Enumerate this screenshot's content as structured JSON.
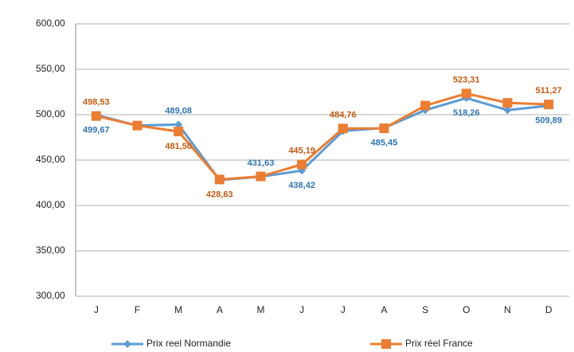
{
  "chart_data": {
    "type": "line",
    "categories": [
      "J",
      "F",
      "M",
      "A",
      "M",
      "J",
      "J",
      "A",
      "S",
      "O",
      "N",
      "D"
    ],
    "series": [
      {
        "name": "Prix reel Normandie",
        "color": "#5b9bd5",
        "marker": "diamond",
        "values": [
          499.67,
          488,
          489.08,
          428,
          431.63,
          438.42,
          482,
          485.45,
          505,
          518.26,
          505,
          509.89
        ],
        "value_labels": [
          "499,67",
          null,
          "489,08",
          null,
          "431,63",
          "438,42",
          null,
          "485,45",
          null,
          "518,26",
          null,
          "509,89"
        ]
      },
      {
        "name": "Prix réel France",
        "color": "#ed7d31",
        "marker": "square",
        "values": [
          498.53,
          488,
          481.5,
          428.63,
          432,
          445.19,
          484.76,
          485,
          510,
          523.31,
          513,
          511.27
        ],
        "value_labels": [
          "498,53",
          null,
          "481,50",
          "428,63",
          null,
          "445,19",
          "484,76",
          null,
          null,
          "523,31",
          null,
          "511,27"
        ]
      }
    ],
    "ylim": [
      300,
      600
    ],
    "yticks": [
      {
        "value": 300,
        "label": "300,00"
      },
      {
        "value": 350,
        "label": "350,00"
      },
      {
        "value": 400,
        "label": "400,00"
      },
      {
        "value": 450,
        "label": "450,00"
      },
      {
        "value": 500,
        "label": "500,00"
      },
      {
        "value": 550,
        "label": "550,00"
      },
      {
        "value": 600,
        "label": "600,00"
      }
    ],
    "grid": true,
    "legend": "bottom"
  }
}
